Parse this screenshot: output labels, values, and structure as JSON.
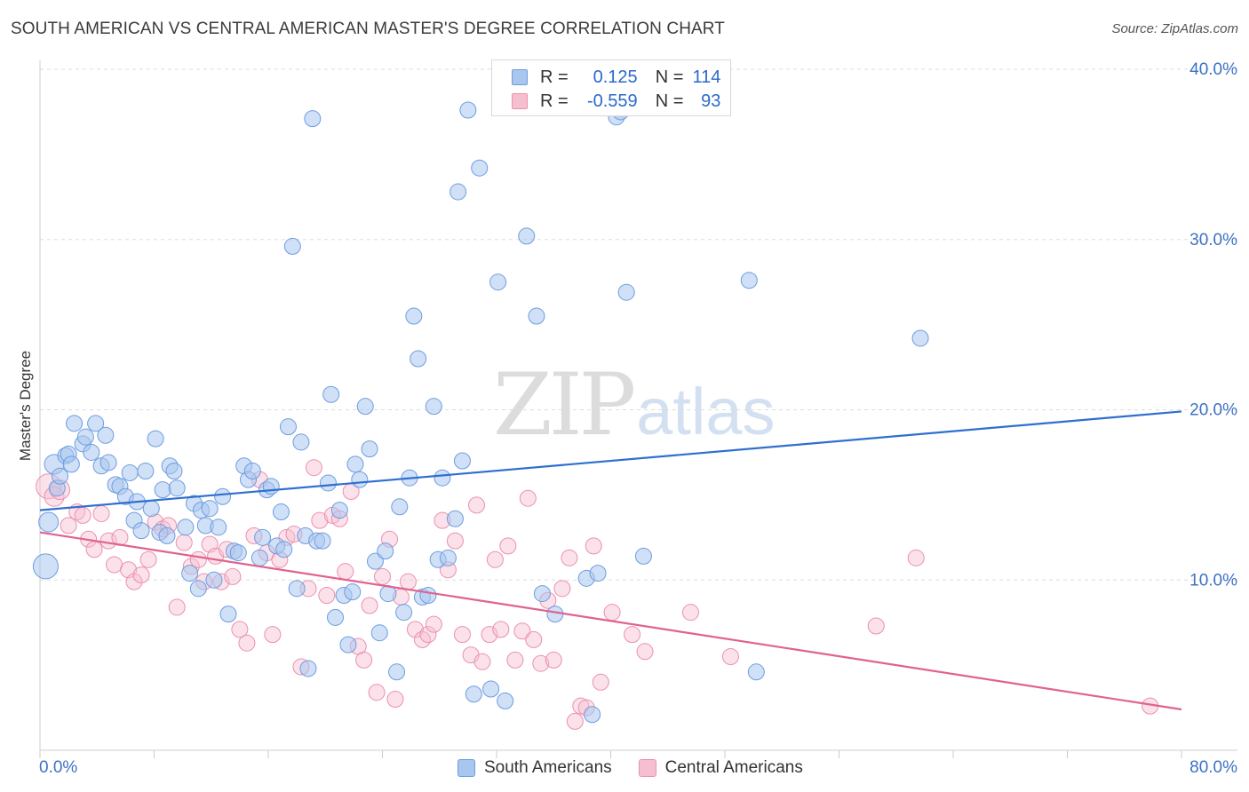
{
  "title": "SOUTH AMERICAN VS CENTRAL AMERICAN MASTER'S DEGREE CORRELATION CHART",
  "source": "Source: ZipAtlas.com",
  "watermark": {
    "part1": "ZIP",
    "part2": "atlas"
  },
  "legend": {
    "rows": [
      {
        "r_label": "R =",
        "r_value": "0.125",
        "n_label": "N =",
        "n_value": "114"
      },
      {
        "r_label": "R =",
        "r_value": "-0.559",
        "n_label": "N =",
        "n_value": "93"
      }
    ]
  },
  "colors": {
    "blue_fill": "#a9c6ee",
    "blue_stroke": "#6d9de0",
    "blue_line": "#2e6fd0",
    "pink_fill": "#f6bfd0",
    "pink_stroke": "#ec8fb0",
    "pink_line": "#e0628f",
    "tick": "#3d72c5",
    "grid": "#dddddd"
  },
  "chart_data": {
    "type": "scatter",
    "ylabel": "Master's Degree",
    "xlim": [
      0,
      80
    ],
    "ylim": [
      0,
      40
    ],
    "x_tick_labels": [
      "0.0%",
      "80.0%"
    ],
    "y_ticks": [
      10,
      20,
      30,
      40
    ],
    "y_tick_labels": [
      "10.0%",
      "20.0%",
      "30.0%",
      "40.0%"
    ],
    "grid": true,
    "series": [
      {
        "name": "South Americans",
        "r": 0.125,
        "n": 114,
        "trend": {
          "x": [
            0,
            80
          ],
          "y": [
            14.1,
            19.9
          ]
        },
        "points": [
          [
            0.4,
            10.8
          ],
          [
            0.6,
            13.4
          ],
          [
            1,
            16.8
          ],
          [
            1.2,
            15.4
          ],
          [
            1.4,
            16.1
          ],
          [
            1.8,
            17.3
          ],
          [
            2,
            17.4
          ],
          [
            2.2,
            16.8
          ],
          [
            2.4,
            19.2
          ],
          [
            3,
            18.0
          ],
          [
            3.2,
            18.4
          ],
          [
            3.6,
            17.5
          ],
          [
            3.9,
            19.2
          ],
          [
            4.3,
            16.7
          ],
          [
            4.6,
            18.5
          ],
          [
            4.8,
            16.9
          ],
          [
            5.3,
            15.6
          ],
          [
            5.6,
            15.5
          ],
          [
            6,
            14.9
          ],
          [
            6.3,
            16.3
          ],
          [
            6.6,
            13.5
          ],
          [
            6.8,
            14.6
          ],
          [
            7.1,
            12.9
          ],
          [
            7.4,
            16.4
          ],
          [
            7.8,
            14.2
          ],
          [
            8.1,
            18.3
          ],
          [
            8.4,
            12.8
          ],
          [
            8.6,
            15.3
          ],
          [
            8.9,
            12.6
          ],
          [
            9.1,
            16.7
          ],
          [
            9.4,
            16.4
          ],
          [
            9.6,
            15.4
          ],
          [
            10.2,
            13.1
          ],
          [
            10.5,
            10.4
          ],
          [
            10.8,
            14.5
          ],
          [
            11.1,
            9.5
          ],
          [
            11.3,
            14.1
          ],
          [
            11.6,
            13.2
          ],
          [
            11.9,
            14.2
          ],
          [
            12.2,
            10.0
          ],
          [
            12.5,
            13.1
          ],
          [
            12.8,
            14.9
          ],
          [
            13.2,
            8.0
          ],
          [
            13.6,
            11.7
          ],
          [
            13.9,
            11.6
          ],
          [
            14.3,
            16.7
          ],
          [
            14.6,
            15.9
          ],
          [
            14.9,
            16.4
          ],
          [
            15.4,
            11.3
          ],
          [
            15.6,
            12.5
          ],
          [
            15.9,
            15.3
          ],
          [
            16.2,
            15.5
          ],
          [
            16.6,
            12.0
          ],
          [
            16.9,
            14.0
          ],
          [
            17.1,
            11.8
          ],
          [
            17.4,
            19.0
          ],
          [
            17.7,
            29.6
          ],
          [
            18,
            9.5
          ],
          [
            18.3,
            18.1
          ],
          [
            18.6,
            12.6
          ],
          [
            18.8,
            4.8
          ],
          [
            19.1,
            37.1
          ],
          [
            19.4,
            12.3
          ],
          [
            19.8,
            12.3
          ],
          [
            20.2,
            15.7
          ],
          [
            20.4,
            20.9
          ],
          [
            20.7,
            7.8
          ],
          [
            21,
            14.1
          ],
          [
            21.3,
            9.1
          ],
          [
            21.6,
            6.2
          ],
          [
            21.9,
            9.3
          ],
          [
            22.1,
            16.8
          ],
          [
            22.4,
            15.9
          ],
          [
            22.8,
            20.2
          ],
          [
            23.1,
            17.7
          ],
          [
            23.5,
            11.1
          ],
          [
            23.8,
            6.9
          ],
          [
            24.2,
            11.7
          ],
          [
            24.4,
            9.2
          ],
          [
            25,
            4.6
          ],
          [
            25.2,
            14.3
          ],
          [
            25.5,
            8.1
          ],
          [
            25.9,
            16.0
          ],
          [
            26.2,
            25.5
          ],
          [
            26.5,
            23.0
          ],
          [
            26.8,
            9.0
          ],
          [
            27.2,
            9.1
          ],
          [
            27.6,
            20.2
          ],
          [
            27.9,
            11.2
          ],
          [
            28.2,
            16.0
          ],
          [
            28.6,
            11.3
          ],
          [
            29.1,
            13.6
          ],
          [
            29.3,
            32.8
          ],
          [
            29.6,
            17.0
          ],
          [
            30,
            37.6
          ],
          [
            30.4,
            3.3
          ],
          [
            30.8,
            34.2
          ],
          [
            31.6,
            3.6
          ],
          [
            32.1,
            27.5
          ],
          [
            32.6,
            2.9
          ],
          [
            34.1,
            30.2
          ],
          [
            34.8,
            25.5
          ],
          [
            35.2,
            9.2
          ],
          [
            36.1,
            8.0
          ],
          [
            38.3,
            10.1
          ],
          [
            38.7,
            2.1
          ],
          [
            39.1,
            10.4
          ],
          [
            40.4,
            37.2
          ],
          [
            40.7,
            37.5
          ],
          [
            41.1,
            26.9
          ],
          [
            42.3,
            11.4
          ],
          [
            49.7,
            27.6
          ],
          [
            50.2,
            4.6
          ],
          [
            61.7,
            24.2
          ]
        ]
      },
      {
        "name": "Central Americans",
        "r": -0.559,
        "n": 93,
        "trend": {
          "x": [
            0,
            80
          ],
          "y": [
            12.8,
            2.4
          ]
        },
        "points": [
          [
            0.6,
            15.5
          ],
          [
            1,
            14.9
          ],
          [
            1.4,
            15.3
          ],
          [
            2,
            13.2
          ],
          [
            2.6,
            14.0
          ],
          [
            3,
            13.8
          ],
          [
            3.4,
            12.4
          ],
          [
            3.8,
            11.8
          ],
          [
            4.3,
            13.9
          ],
          [
            4.8,
            12.3
          ],
          [
            5.2,
            10.9
          ],
          [
            5.6,
            12.5
          ],
          [
            6.2,
            10.6
          ],
          [
            6.6,
            9.9
          ],
          [
            7.1,
            10.3
          ],
          [
            7.6,
            11.2
          ],
          [
            8.1,
            13.4
          ],
          [
            8.6,
            13.0
          ],
          [
            9,
            13.2
          ],
          [
            9.6,
            8.4
          ],
          [
            10.1,
            12.2
          ],
          [
            10.6,
            10.8
          ],
          [
            11.1,
            11.2
          ],
          [
            11.5,
            9.9
          ],
          [
            11.9,
            12.1
          ],
          [
            12.3,
            11.4
          ],
          [
            12.7,
            9.9
          ],
          [
            13.1,
            11.8
          ],
          [
            13.5,
            10.2
          ],
          [
            14,
            7.1
          ],
          [
            14.5,
            6.3
          ],
          [
            15,
            12.6
          ],
          [
            15.4,
            15.9
          ],
          [
            15.9,
            11.6
          ],
          [
            16.3,
            6.8
          ],
          [
            16.8,
            11.2
          ],
          [
            17.3,
            12.5
          ],
          [
            17.8,
            12.7
          ],
          [
            18.3,
            4.9
          ],
          [
            18.8,
            9.5
          ],
          [
            19.2,
            16.6
          ],
          [
            19.6,
            13.5
          ],
          [
            20.1,
            9.1
          ],
          [
            20.5,
            13.8
          ],
          [
            21,
            13.6
          ],
          [
            21.4,
            10.5
          ],
          [
            21.8,
            15.2
          ],
          [
            22.3,
            6.1
          ],
          [
            22.7,
            5.3
          ],
          [
            23.1,
            8.5
          ],
          [
            23.6,
            3.4
          ],
          [
            24,
            10.2
          ],
          [
            24.5,
            12.4
          ],
          [
            24.9,
            3.0
          ],
          [
            25.3,
            9.0
          ],
          [
            25.8,
            9.9
          ],
          [
            26.3,
            7.1
          ],
          [
            26.8,
            6.5
          ],
          [
            27.2,
            6.8
          ],
          [
            27.6,
            7.4
          ],
          [
            28.2,
            13.5
          ],
          [
            28.6,
            10.6
          ],
          [
            29.1,
            12.3
          ],
          [
            29.6,
            6.8
          ],
          [
            30.2,
            5.6
          ],
          [
            30.6,
            14.4
          ],
          [
            31,
            5.2
          ],
          [
            31.5,
            6.8
          ],
          [
            31.9,
            11.2
          ],
          [
            32.3,
            7.1
          ],
          [
            32.8,
            12.0
          ],
          [
            33.3,
            5.3
          ],
          [
            33.8,
            7.0
          ],
          [
            34.2,
            14.8
          ],
          [
            34.6,
            6.5
          ],
          [
            35.1,
            5.1
          ],
          [
            35.6,
            8.8
          ],
          [
            36,
            5.3
          ],
          [
            36.6,
            9.5
          ],
          [
            37.1,
            11.3
          ],
          [
            37.5,
            1.7
          ],
          [
            37.9,
            2.6
          ],
          [
            38.3,
            2.5
          ],
          [
            38.8,
            12.0
          ],
          [
            39.3,
            4.0
          ],
          [
            40.1,
            8.1
          ],
          [
            41.5,
            6.8
          ],
          [
            42.4,
            5.8
          ],
          [
            45.6,
            8.1
          ],
          [
            48.4,
            5.5
          ],
          [
            58.6,
            7.3
          ],
          [
            61.4,
            11.3
          ],
          [
            77.8,
            2.6
          ]
        ]
      }
    ]
  },
  "bottom_legend": [
    "South Americans",
    "Central Americans"
  ]
}
